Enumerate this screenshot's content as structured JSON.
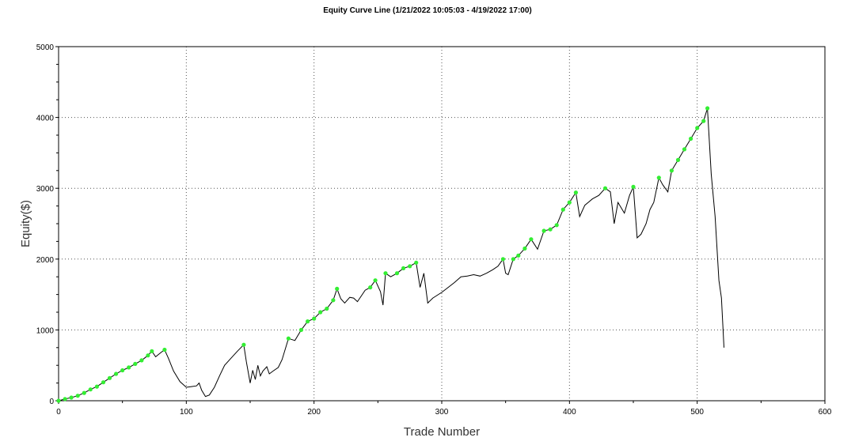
{
  "chart_data": {
    "type": "line",
    "title": "Equity Curve Line (1/21/2022 10:05:03 - 4/19/2022 17:00)",
    "xlabel": "Trade Number",
    "ylabel": "Equity($)",
    "xlim": [
      0,
      600
    ],
    "ylim": [
      0,
      5000
    ],
    "x_ticks": [
      0,
      100,
      200,
      300,
      400,
      500,
      600
    ],
    "y_ticks": [
      0,
      1000,
      2000,
      3000,
      4000,
      5000
    ],
    "grid": true,
    "colors": {
      "line": "#000000",
      "new_high_marker": "#33ee33",
      "grid": "#555555"
    },
    "series": [
      {
        "values": [
          [
            0,
            0
          ],
          [
            5,
            25
          ],
          [
            10,
            45
          ],
          [
            15,
            70
          ],
          [
            20,
            110
          ],
          [
            25,
            160
          ],
          [
            30,
            200
          ],
          [
            35,
            260
          ],
          [
            40,
            320
          ],
          [
            45,
            380
          ],
          [
            50,
            430
          ],
          [
            55,
            470
          ],
          [
            60,
            520
          ],
          [
            65,
            570
          ],
          [
            70,
            640
          ],
          [
            73,
            700
          ],
          [
            76,
            620
          ],
          [
            80,
            680
          ],
          [
            83,
            720
          ],
          [
            86,
            600
          ],
          [
            90,
            420
          ],
          [
            95,
            270
          ],
          [
            100,
            190
          ],
          [
            104,
            200
          ],
          [
            108,
            210
          ],
          [
            110,
            250
          ],
          [
            112,
            150
          ],
          [
            115,
            60
          ],
          [
            118,
            80
          ],
          [
            122,
            190
          ],
          [
            126,
            350
          ],
          [
            130,
            500
          ],
          [
            135,
            600
          ],
          [
            140,
            700
          ],
          [
            145,
            790
          ],
          [
            147,
            550
          ],
          [
            150,
            250
          ],
          [
            152,
            430
          ],
          [
            154,
            300
          ],
          [
            156,
            500
          ],
          [
            158,
            350
          ],
          [
            160,
            420
          ],
          [
            163,
            480
          ],
          [
            165,
            380
          ],
          [
            168,
            420
          ],
          [
            172,
            470
          ],
          [
            175,
            580
          ],
          [
            180,
            880
          ],
          [
            185,
            850
          ],
          [
            190,
            1000
          ],
          [
            195,
            1120
          ],
          [
            200,
            1160
          ],
          [
            205,
            1250
          ],
          [
            210,
            1300
          ],
          [
            215,
            1420
          ],
          [
            218,
            1580
          ],
          [
            221,
            1440
          ],
          [
            224,
            1380
          ],
          [
            228,
            1460
          ],
          [
            231,
            1450
          ],
          [
            234,
            1400
          ],
          [
            237,
            1480
          ],
          [
            240,
            1560
          ],
          [
            244,
            1600
          ],
          [
            248,
            1700
          ],
          [
            252,
            1540
          ],
          [
            254,
            1350
          ],
          [
            256,
            1800
          ],
          [
            260,
            1750
          ],
          [
            265,
            1800
          ],
          [
            270,
            1870
          ],
          [
            275,
            1900
          ],
          [
            280,
            1950
          ],
          [
            283,
            1600
          ],
          [
            286,
            1800
          ],
          [
            289,
            1380
          ],
          [
            293,
            1450
          ],
          [
            300,
            1530
          ],
          [
            305,
            1600
          ],
          [
            310,
            1670
          ],
          [
            315,
            1750
          ],
          [
            320,
            1760
          ],
          [
            325,
            1780
          ],
          [
            330,
            1760
          ],
          [
            335,
            1800
          ],
          [
            340,
            1850
          ],
          [
            344,
            1900
          ],
          [
            348,
            2000
          ],
          [
            350,
            1800
          ],
          [
            352,
            1780
          ],
          [
            356,
            2000
          ],
          [
            360,
            2050
          ],
          [
            365,
            2150
          ],
          [
            370,
            2280
          ],
          [
            375,
            2140
          ],
          [
            380,
            2400
          ],
          [
            385,
            2420
          ],
          [
            390,
            2480
          ],
          [
            395,
            2700
          ],
          [
            400,
            2800
          ],
          [
            405,
            2940
          ],
          [
            408,
            2600
          ],
          [
            412,
            2760
          ],
          [
            418,
            2850
          ],
          [
            423,
            2900
          ],
          [
            428,
            3000
          ],
          [
            432,
            2950
          ],
          [
            435,
            2500
          ],
          [
            438,
            2800
          ],
          [
            443,
            2650
          ],
          [
            447,
            2900
          ],
          [
            450,
            3020
          ],
          [
            453,
            2300
          ],
          [
            456,
            2350
          ],
          [
            460,
            2500
          ],
          [
            463,
            2700
          ],
          [
            466,
            2800
          ],
          [
            470,
            3150
          ],
          [
            473,
            3050
          ],
          [
            477,
            2950
          ],
          [
            480,
            3250
          ],
          [
            485,
            3400
          ],
          [
            490,
            3550
          ],
          [
            495,
            3700
          ],
          [
            500,
            3850
          ],
          [
            505,
            3950
          ],
          [
            508,
            4130
          ],
          [
            511,
            3200
          ],
          [
            514,
            2600
          ],
          [
            517,
            1700
          ],
          [
            519,
            1450
          ],
          [
            521,
            750
          ]
        ]
      }
    ]
  }
}
